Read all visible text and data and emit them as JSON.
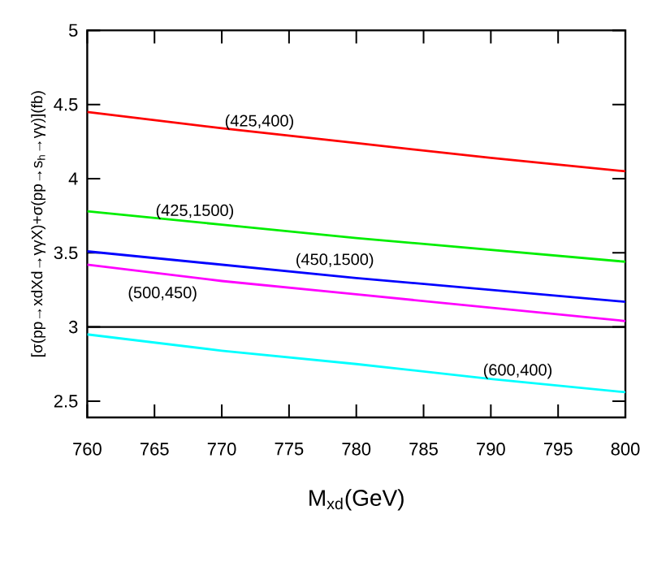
{
  "chart_data": {
    "type": "line",
    "xlabel": "M$_{xd}$(GeV)",
    "ylabel": "[σ(pp→xdXd→γγX)+σ(pp→s$_{h}$→γγ)](fb)",
    "x": [
      760,
      770,
      780,
      790,
      800
    ],
    "series": [
      {
        "name": "(425,400)",
        "color": "#ff0000",
        "values": [
          4.45,
          4.34,
          4.24,
          4.14,
          4.05
        ]
      },
      {
        "name": "(425,1500)",
        "color": "#00ee00",
        "values": [
          3.78,
          3.69,
          3.6,
          3.52,
          3.44
        ]
      },
      {
        "name": "(450,1500)",
        "color": "#0000ff",
        "values": [
          3.51,
          3.42,
          3.33,
          3.25,
          3.17
        ]
      },
      {
        "name": "(500,450)",
        "color": "#ff00ff",
        "values": [
          3.42,
          3.31,
          3.22,
          3.13,
          3.04
        ]
      },
      {
        "name": "(600,400)",
        "color": "#00ffff",
        "values": [
          2.95,
          2.84,
          2.75,
          2.65,
          2.56
        ]
      }
    ],
    "ref_lines": [
      {
        "axis": "y",
        "value": 3,
        "color": "#000000"
      }
    ],
    "xlim": [
      760,
      800
    ],
    "ylim": [
      2.39,
      5
    ],
    "xticks": [
      760,
      765,
      770,
      775,
      780,
      785,
      790,
      795,
      800
    ],
    "yticks": [
      2.5,
      3,
      3.5,
      4,
      4.5,
      5
    ],
    "grid": false,
    "legend": false,
    "line_style": "solid",
    "marker": "none"
  }
}
